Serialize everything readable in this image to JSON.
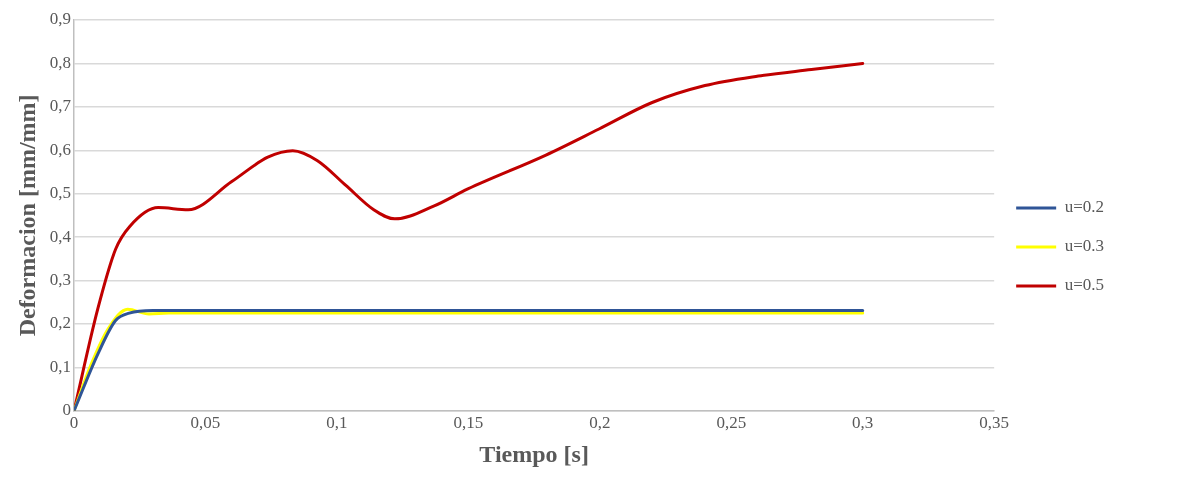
{
  "chart_data": {
    "type": "line",
    "xlabel": "Tiempo [s]",
    "ylabel": "Deformacion [mm/mm]",
    "xlim": [
      0,
      0.35
    ],
    "xticks": [
      0,
      {
        "value": 0.05,
        "label": "0,05"
      },
      {
        "value": 0.1,
        "label": "0,1"
      },
      {
        "value": 0.15,
        "label": "0,15"
      },
      {
        "value": 0.2,
        "label": "0,2"
      },
      {
        "value": 0.25,
        "label": "0,25"
      },
      {
        "value": 0.3,
        "label": "0,3"
      },
      {
        "value": 0.35,
        "label": "0,35"
      }
    ],
    "ylim": [
      0,
      0.9
    ],
    "yticks": [
      0,
      {
        "value": 0.1,
        "label": "0,1"
      },
      {
        "value": 0.2,
        "label": "0,2"
      },
      {
        "value": 0.3,
        "label": "0,3"
      },
      {
        "value": 0.4,
        "label": "0,4"
      },
      {
        "value": 0.5,
        "label": "0,5"
      },
      {
        "value": 0.6,
        "label": "0,6"
      },
      {
        "value": 0.7,
        "label": "0,7"
      },
      {
        "value": 0.8,
        "label": "0,8"
      },
      {
        "value": 0.9,
        "label": "0,9"
      }
    ],
    "grid": "y",
    "legend": "right",
    "marker": "none",
    "line_style": "solid",
    "series": [
      {
        "name": "u=0.2",
        "color": "#2f5597",
        "x": [
          0,
          0.009,
          0.0158,
          0.021,
          0.03,
          0.3
        ],
        "values": [
          0,
          0.13,
          0.208,
          0.225,
          0.231,
          0.231
        ]
      },
      {
        "name": "u=0.3",
        "color": "#ffff00",
        "x": [
          0,
          0.0063,
          0.0131,
          0.0204,
          0.0285,
          0.036,
          0.3
        ],
        "values": [
          0,
          0.104,
          0.19,
          0.234,
          0.223,
          0.225,
          0.225
        ]
      },
      {
        "name": "u=0.5",
        "color": "#c00000",
        "x": [
          0,
          0.009,
          0.0158,
          0.0211,
          0.032,
          0.0434,
          0.06,
          0.0737,
          0.0832,
          0.0926,
          0.1034,
          0.114,
          0.122,
          0.137,
          0.1498,
          0.1795,
          0.1997,
          0.2199,
          0.24,
          0.2603,
          0.2805,
          0.3
        ],
        "values": [
          0,
          0.234,
          0.372,
          0.424,
          0.468,
          0.463,
          0.528,
          0.584,
          0.599,
          0.576,
          0.519,
          0.463,
          0.442,
          0.472,
          0.511,
          0.589,
          0.649,
          0.71,
          0.749,
          0.771,
          0.786,
          0.8
        ]
      }
    ]
  }
}
